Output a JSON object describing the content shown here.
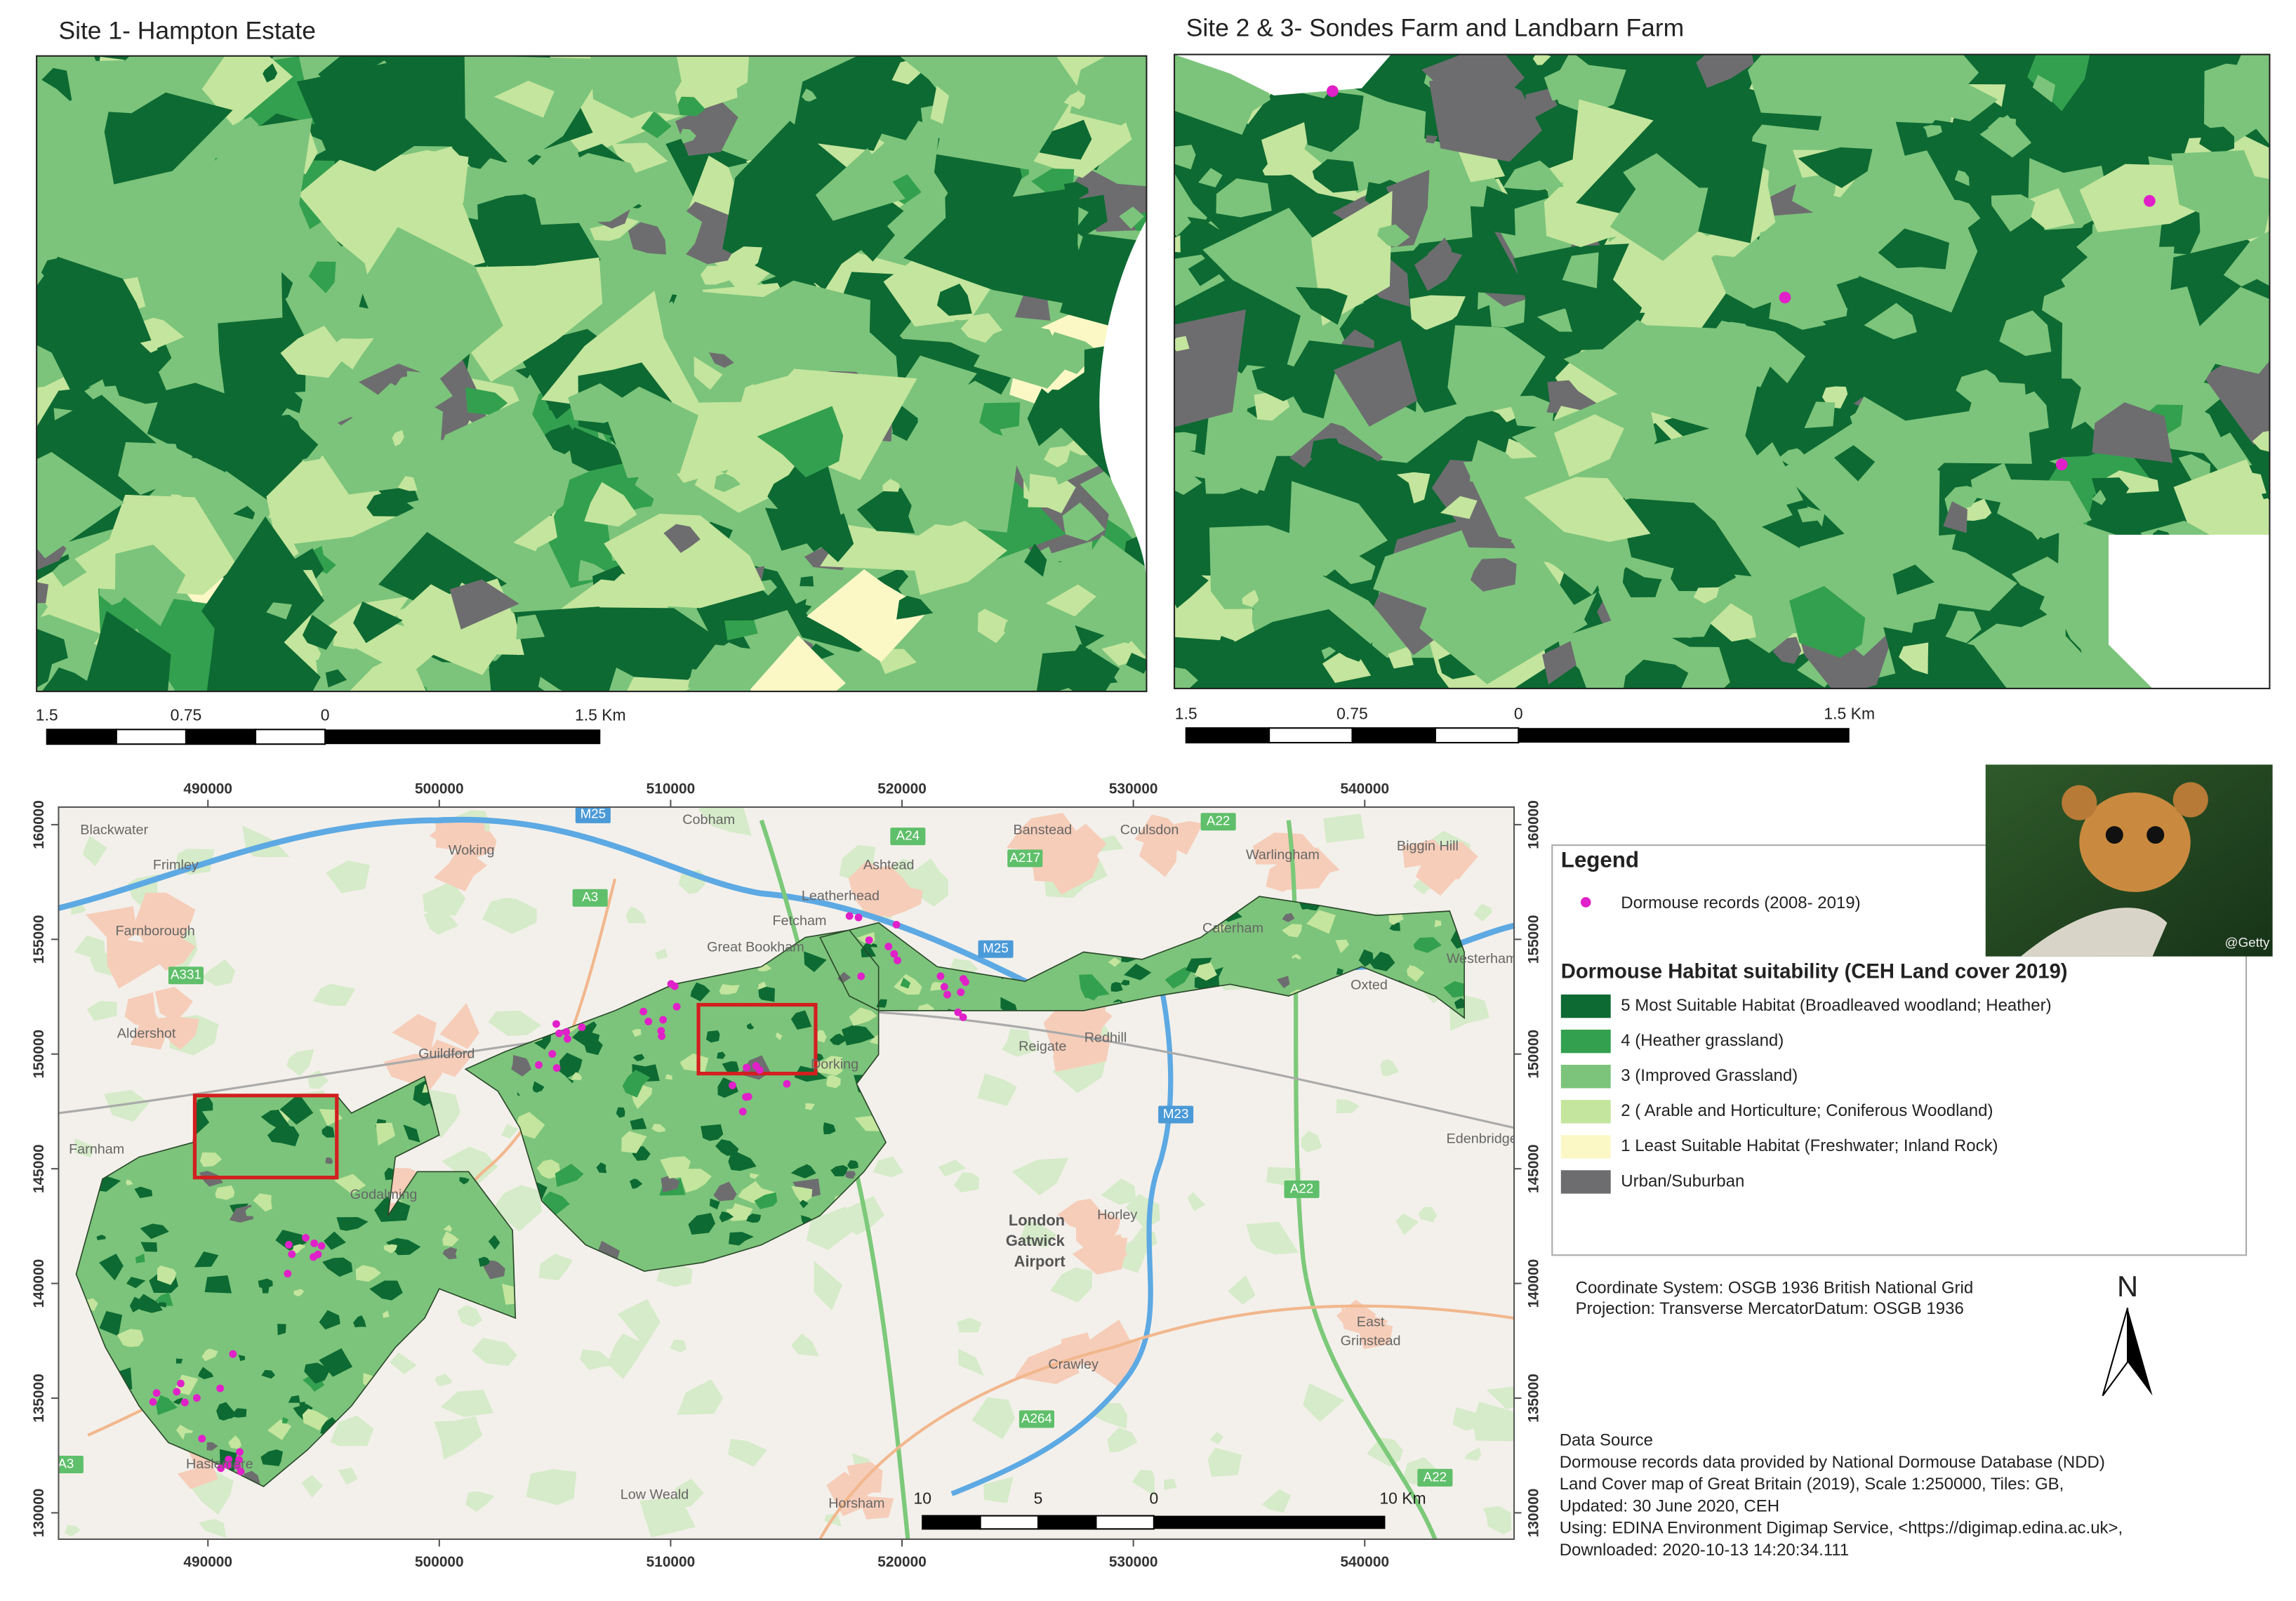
{
  "site1": {
    "title": "Site 1- Hampton Estate",
    "scale_labels": [
      "1.5",
      "0.75",
      "0",
      "1.5 Km"
    ]
  },
  "site2": {
    "title": "Site 2 & 3- Sondes Farm and Landbarn Farm",
    "scale_labels": [
      "1.5",
      "0.75",
      "0",
      "1.5 Km"
    ]
  },
  "overview": {
    "x_ticks": [
      490000,
      500000,
      510000,
      520000,
      530000,
      540000
    ],
    "y_ticks": [
      160000,
      155000,
      150000,
      145000,
      140000,
      135000,
      130000
    ],
    "scale_labels": [
      "10",
      "5",
      "0",
      "10 Km"
    ],
    "places": [
      "Blackwater",
      "Frimley",
      "Farnborough",
      "Aldershot",
      "Woking",
      "Guildford",
      "Cobham",
      "Ashtead",
      "Leatherhead",
      "Fetcham",
      "Great Bookham",
      "Banstead",
      "Coulsdon",
      "Warlingham",
      "Biggin Hill",
      "Caterham",
      "Reigate",
      "Redhill",
      "Dorking",
      "Oxted",
      "Westerham",
      "Godalming",
      "Farnham",
      "Haslemere",
      "Horley",
      "London",
      "Gatwick",
      "Airport",
      "Crawley",
      "East",
      "Grinstead",
      "Edenbridge",
      "Horsham",
      "Low Weald"
    ],
    "roads": [
      "M25",
      "M23",
      "A3",
      "A24",
      "A217",
      "A22",
      "A331",
      "A22",
      "A264",
      "A22",
      "M25",
      "A3"
    ]
  },
  "legend": {
    "title": "Legend",
    "records": "Dormouse records (2008- 2019)",
    "habitat_title": "Dormouse Habitat suitability (CEH Land cover 2019)",
    "items": [
      {
        "label": "5 Most Suitable Habitat (Broadleaved woodland; Heather)",
        "color": "#0d6a32"
      },
      {
        "label": "4 (Heather grassland)",
        "color": "#33a04f"
      },
      {
        "label": "3 (Improved Grassland)",
        "color": "#7cc47b"
      },
      {
        "label": "2 ( Arable and Horticulture; Coniferous Woodland)",
        "color": "#c4e59d"
      },
      {
        "label": "1 Least Suitable Habitat (Freshwater; Inland Rock)",
        "color": "#fcf8c6"
      },
      {
        "label": "Urban/Suburban",
        "color": "#6d6d6f"
      }
    ],
    "records_color": "#e020c8"
  },
  "photo_credit": "@Getty",
  "coordinates": [
    "Coordinate System: OSGB 1936 British National Grid",
    "Projection: Transverse MercatorDatum: OSGB 1936"
  ],
  "north": "N",
  "data_source": [
    "Data Source",
    "Dormouse records data provided by National Dormouse Database (NDD)",
    "Land Cover map of Great Britain (2019), Scale 1:250000, Tiles: GB,",
    "Updated: 30 June 2020, CEH",
    "Using: EDINA Environment Digimap Service, <https://digimap.edina.ac.uk>,",
    "Downloaded: 2020-10-13 14:20:34.111"
  ]
}
